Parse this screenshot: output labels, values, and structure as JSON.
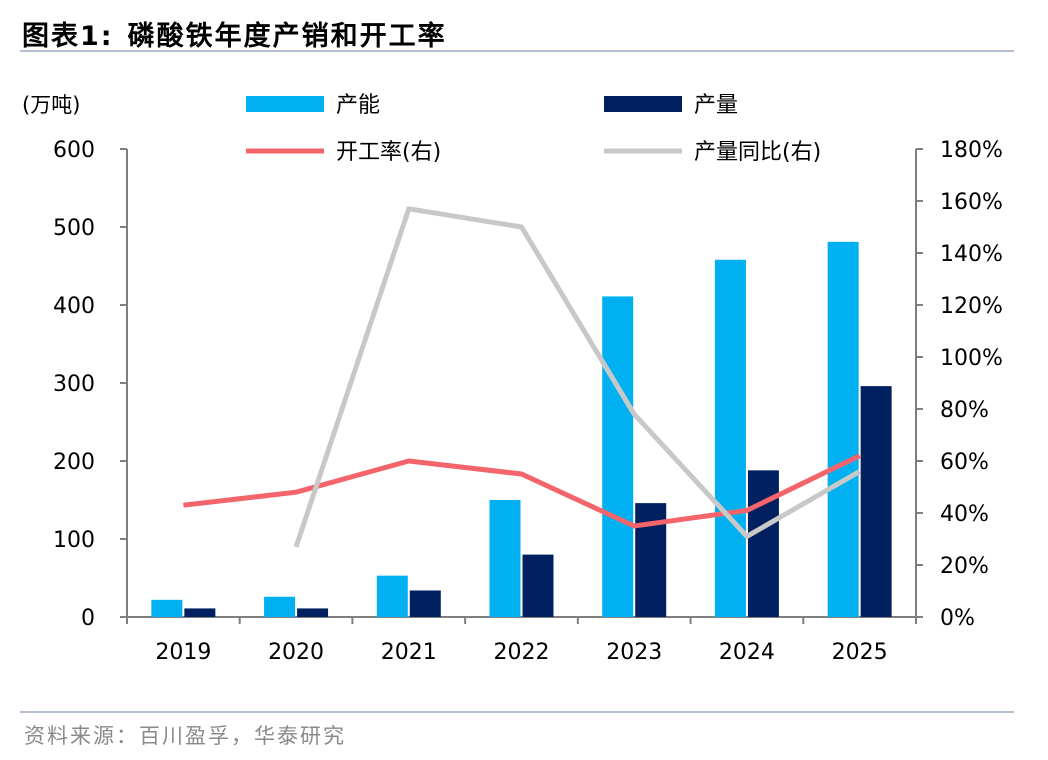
{
  "header": {
    "figure_label": "图表1:",
    "title": "磷酸铁年度产销和开工率"
  },
  "source": "资料来源：百川盈孚，华泰研究",
  "chart_data": {
    "type": "bar",
    "title": "磷酸铁年度产销和开工率",
    "categories": [
      "2019",
      "2020",
      "2021",
      "2022",
      "2023",
      "2024",
      "2025"
    ],
    "left_axis": {
      "unit_label": "(万吨)",
      "ylim": [
        0,
        600
      ],
      "ticks": [
        "0",
        "100",
        "200",
        "300",
        "400",
        "500",
        "600"
      ]
    },
    "right_axis": {
      "ylim": [
        0,
        1.8
      ],
      "ticks": [
        "0%",
        "20%",
        "40%",
        "60%",
        "80%",
        "100%",
        "120%",
        "140%",
        "160%",
        "180%"
      ]
    },
    "series": [
      {
        "name": "产能",
        "type": "bar",
        "axis": "left",
        "color": "#00b0f0",
        "values": [
          22,
          26,
          53,
          150,
          411,
          458,
          481
        ]
      },
      {
        "name": "产量",
        "type": "bar",
        "axis": "left",
        "color": "#002060",
        "values": [
          11,
          11,
          34,
          80,
          146,
          188,
          296
        ]
      },
      {
        "name": "开工率(右)",
        "type": "line",
        "axis": "right",
        "color": "#f4646b",
        "values": [
          0.43,
          0.48,
          0.6,
          0.55,
          0.35,
          0.41,
          0.62
        ]
      },
      {
        "name": "产量同比(右)",
        "type": "line",
        "axis": "right",
        "color": "#c8c8c8",
        "values": [
          null,
          0.27,
          1.57,
          1.5,
          0.78,
          0.31,
          0.56
        ]
      }
    ],
    "legend_position": "top",
    "grid": false
  }
}
